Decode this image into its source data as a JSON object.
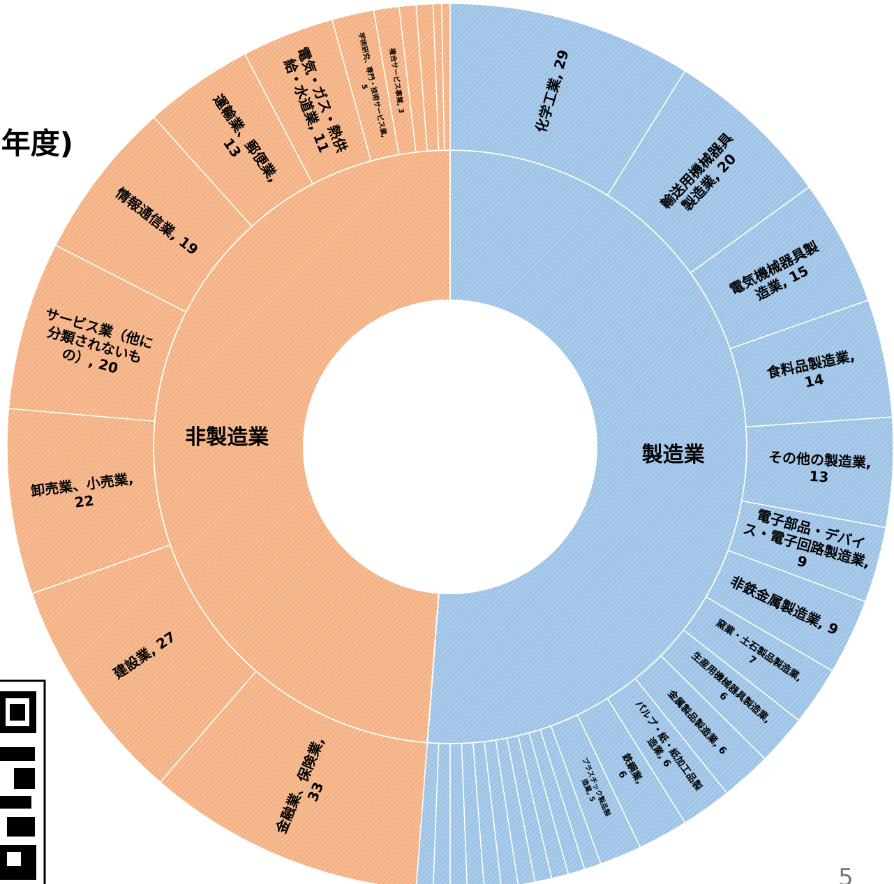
{
  "chart_data": {
    "type": "sunburst",
    "title": "年度)",
    "inner": {
      "categories": [
        "製造業",
        "非製造業"
      ],
      "values": [
        167,
        159
      ],
      "colors": [
        "#9dc3e6",
        "#f4b183"
      ]
    },
    "outer": {
      "categories": [
        "化学工業",
        "輸送用機械器具製造業",
        "電気機械器具製造業",
        "食料品製造業",
        "その他の製造業",
        "電子部品・デバイス・電子回路製造業",
        "非鉄金属製造業",
        "窯業・土石製品製造業",
        "生産用機械器具製造業",
        "金属製品製造業",
        "パルプ・紙・紙加工品製造業",
        "鉄鋼業",
        "プラスチック製品製造業",
        null,
        null,
        null,
        null,
        null,
        null,
        null,
        null,
        null,
        null,
        null,
        "金融業、保険業",
        "建設業",
        "卸売業、小売業",
        "サービス業（他に分類されないもの）",
        "情報通信業",
        "運輸業、郵便業",
        "電気・ガス・熱供給・水道業",
        "学術研究、専門・技術サービス業",
        "複合サービス事業",
        null,
        null,
        null,
        null
      ],
      "values": [
        29,
        20,
        15,
        14,
        13,
        9,
        9,
        7,
        6,
        6,
        6,
        6,
        5,
        2,
        2,
        2,
        2,
        2,
        2,
        2,
        2,
        2,
        2,
        2,
        33,
        27,
        22,
        20,
        19,
        13,
        11,
        5,
        3,
        2,
        2,
        1,
        1
      ],
      "value_labels": [
        "化学工業, 29",
        "輸送用機械器具\n製造業, 20",
        "電気機械器具製\n造業, 15",
        "食料品製造業,\n14",
        "その他の製造業,\n13",
        "電子部品・デバイ\nス・電子回路製造業,\n9",
        "非鉄金属製造業, 9",
        "窯業・土石製品製造業,\n7",
        "生産用機械器具製造業,\n6",
        "金属製品製造業, 6",
        "パルプ・紙・紙加工品製\n造業, 6",
        "鉄鋼業,\n6",
        "プラスチック製品製\n造業, 5",
        null,
        null,
        null,
        null,
        null,
        null,
        null,
        null,
        null,
        null,
        null,
        "金融業、保険業,\n33",
        "建設業, 27",
        "卸売業、小売業,\n22",
        "サービス業（他に\n分類されないも\nの）, 20",
        "情報通信業, 19",
        "運輸業、郵便業,\n13",
        "電気・ガス・熱供\n給・水道業, 11",
        "学術研究、専門・技術サービス業,\n5",
        "複合サービス事業, 3",
        null,
        null,
        null,
        null
      ]
    }
  },
  "page_number": "5"
}
